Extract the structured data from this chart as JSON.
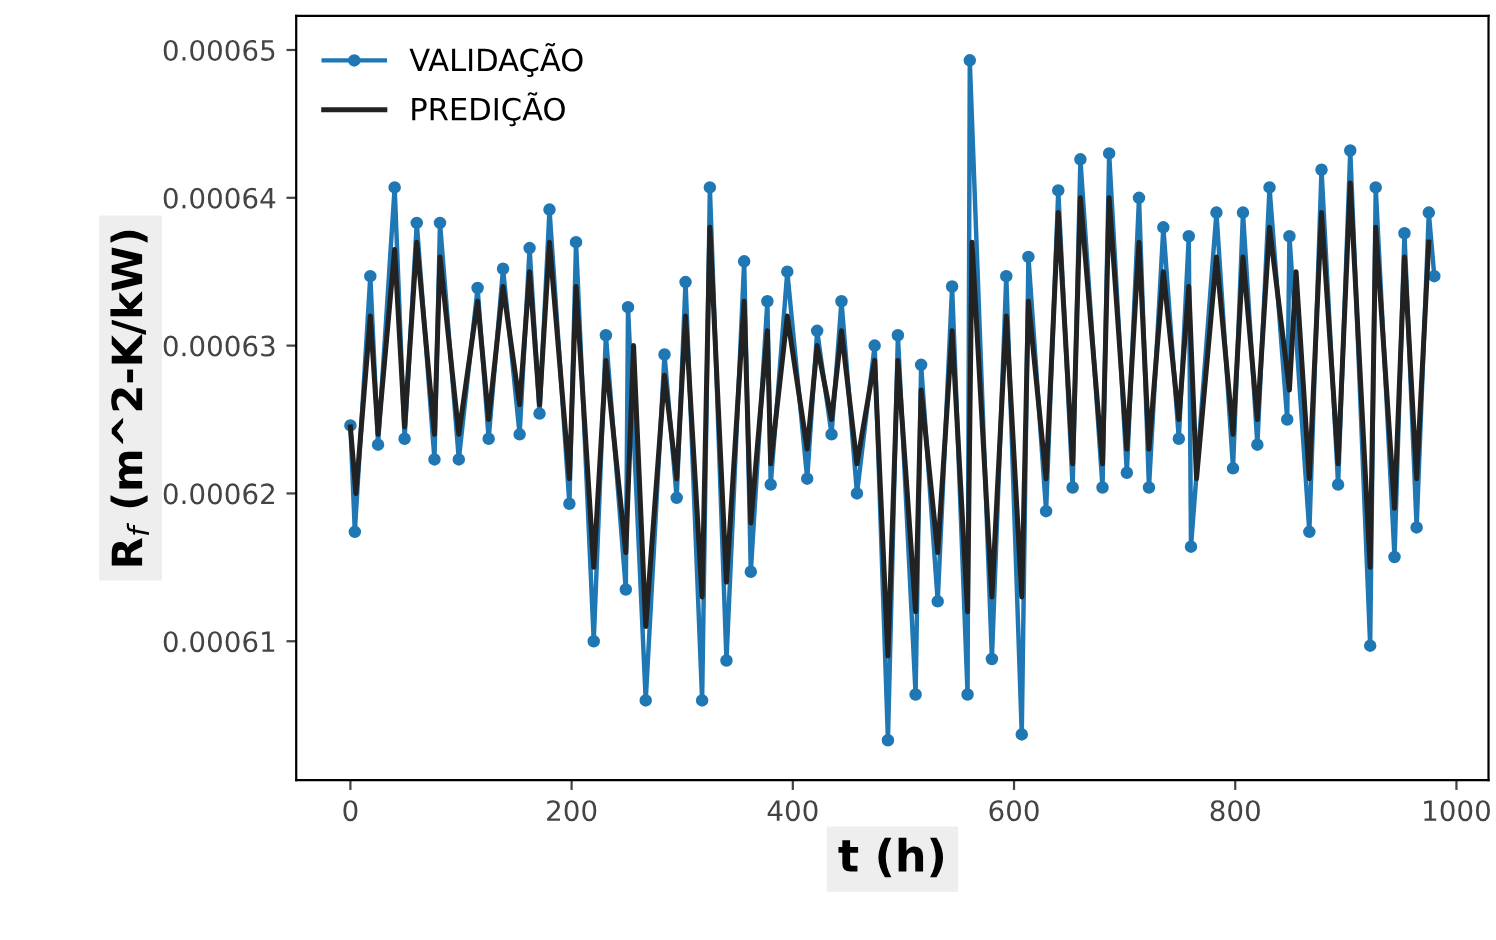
{
  "chart_data": {
    "type": "line",
    "xlabel": "t (h)",
    "ylabel": "R$_{f}$ (m^2-K/kW)",
    "xlim": [
      -49,
      1029
    ],
    "ylim": [
      0.0006006,
      0.0006523
    ],
    "xticks": [
      0,
      200,
      400,
      600,
      800,
      1000
    ],
    "yticks": [
      0.00061,
      0.00062,
      0.00063,
      0.00064,
      0.00065
    ],
    "grid": false,
    "legend": "top left",
    "line_style": "solid",
    "series": [
      {
        "name": "VALIDAÇÃO",
        "color": "#1f77b4",
        "marker": "circle",
        "x": [
          0,
          4,
          18,
          25,
          40,
          49,
          60,
          76,
          81,
          98,
          115,
          125,
          138,
          153,
          162,
          171,
          180,
          198,
          204,
          220,
          231,
          249,
          251,
          267,
          284,
          295,
          303,
          318,
          325,
          340,
          356,
          362,
          377,
          380,
          395,
          413,
          422,
          435,
          444,
          458,
          474,
          486,
          495,
          511,
          516,
          531,
          544,
          558,
          560,
          580,
          593,
          607,
          613,
          629,
          640,
          653,
          660,
          680,
          686,
          702,
          713,
          722,
          735,
          749,
          758,
          760,
          783,
          798,
          807,
          820,
          831,
          847,
          849,
          867,
          878,
          893,
          904,
          922,
          927,
          944,
          953,
          964,
          975,
          980
        ],
        "values": [
          0.0006246,
          0.0006174,
          0.0006347,
          0.0006233,
          0.0006407,
          0.0006237,
          0.0006383,
          0.0006223,
          0.0006383,
          0.0006223,
          0.0006339,
          0.0006237,
          0.0006352,
          0.000624,
          0.0006366,
          0.0006254,
          0.0006392,
          0.0006193,
          0.000637,
          0.00061,
          0.0006307,
          0.0006135,
          0.0006326,
          0.000606,
          0.0006294,
          0.0006197,
          0.0006343,
          0.000606,
          0.0006407,
          0.0006087,
          0.0006357,
          0.0006147,
          0.000633,
          0.0006206,
          0.000635,
          0.000621,
          0.000631,
          0.000624,
          0.000633,
          0.00062,
          0.00063,
          0.0006033,
          0.0006307,
          0.0006064,
          0.0006287,
          0.0006127,
          0.000634,
          0.0006064,
          0.0006493,
          0.0006088,
          0.0006347,
          0.0006037,
          0.000636,
          0.0006188,
          0.0006405,
          0.0006204,
          0.0006426,
          0.0006204,
          0.000643,
          0.0006214,
          0.00064,
          0.0006204,
          0.000638,
          0.0006237,
          0.0006374,
          0.0006164,
          0.000639,
          0.0006217,
          0.000639,
          0.0006233,
          0.0006407,
          0.000625,
          0.0006374,
          0.0006174,
          0.0006419,
          0.0006206,
          0.0006432,
          0.0006097,
          0.0006407,
          0.0006157,
          0.0006376,
          0.0006177,
          0.000639,
          0.0006347
        ]
      },
      {
        "name": "PREDIÇÃO",
        "color": "#222222",
        "marker": "none",
        "x": [
          0,
          5,
          18,
          25,
          40,
          49,
          60,
          76,
          81,
          98,
          115,
          125,
          138,
          153,
          162,
          171,
          180,
          198,
          204,
          220,
          231,
          249,
          256,
          267,
          284,
          295,
          303,
          318,
          325,
          340,
          356,
          362,
          377,
          380,
          395,
          413,
          422,
          435,
          444,
          458,
          474,
          486,
          495,
          511,
          516,
          531,
          544,
          558,
          562,
          580,
          593,
          607,
          613,
          629,
          640,
          653,
          660,
          680,
          686,
          702,
          713,
          722,
          735,
          749,
          758,
          765,
          783,
          798,
          807,
          820,
          831,
          849,
          855,
          867,
          878,
          893,
          904,
          922,
          927,
          944,
          953,
          964,
          975
        ],
        "values": [
          0.0006245,
          0.00062,
          0.000632,
          0.000624,
          0.0006365,
          0.0006245,
          0.000637,
          0.000624,
          0.000636,
          0.000624,
          0.000633,
          0.000625,
          0.000634,
          0.000626,
          0.000635,
          0.000626,
          0.000637,
          0.000621,
          0.000634,
          0.000615,
          0.000629,
          0.000616,
          0.00063,
          0.000611,
          0.000628,
          0.000621,
          0.000632,
          0.000613,
          0.000638,
          0.000614,
          0.000633,
          0.000618,
          0.000631,
          0.000622,
          0.000632,
          0.000623,
          0.00063,
          0.000625,
          0.000631,
          0.000622,
          0.000629,
          0.000609,
          0.000629,
          0.000612,
          0.000627,
          0.000616,
          0.000631,
          0.000612,
          0.000637,
          0.000613,
          0.000632,
          0.000613,
          0.000633,
          0.000621,
          0.000639,
          0.000622,
          0.00064,
          0.000622,
          0.00064,
          0.000623,
          0.000637,
          0.000623,
          0.000635,
          0.000625,
          0.000634,
          0.000621,
          0.000636,
          0.000624,
          0.000636,
          0.000625,
          0.000638,
          0.000627,
          0.000635,
          0.000621,
          0.000639,
          0.000622,
          0.000641,
          0.000615,
          0.000638,
          0.000619,
          0.000636,
          0.000621,
          0.000637
        ]
      }
    ]
  }
}
